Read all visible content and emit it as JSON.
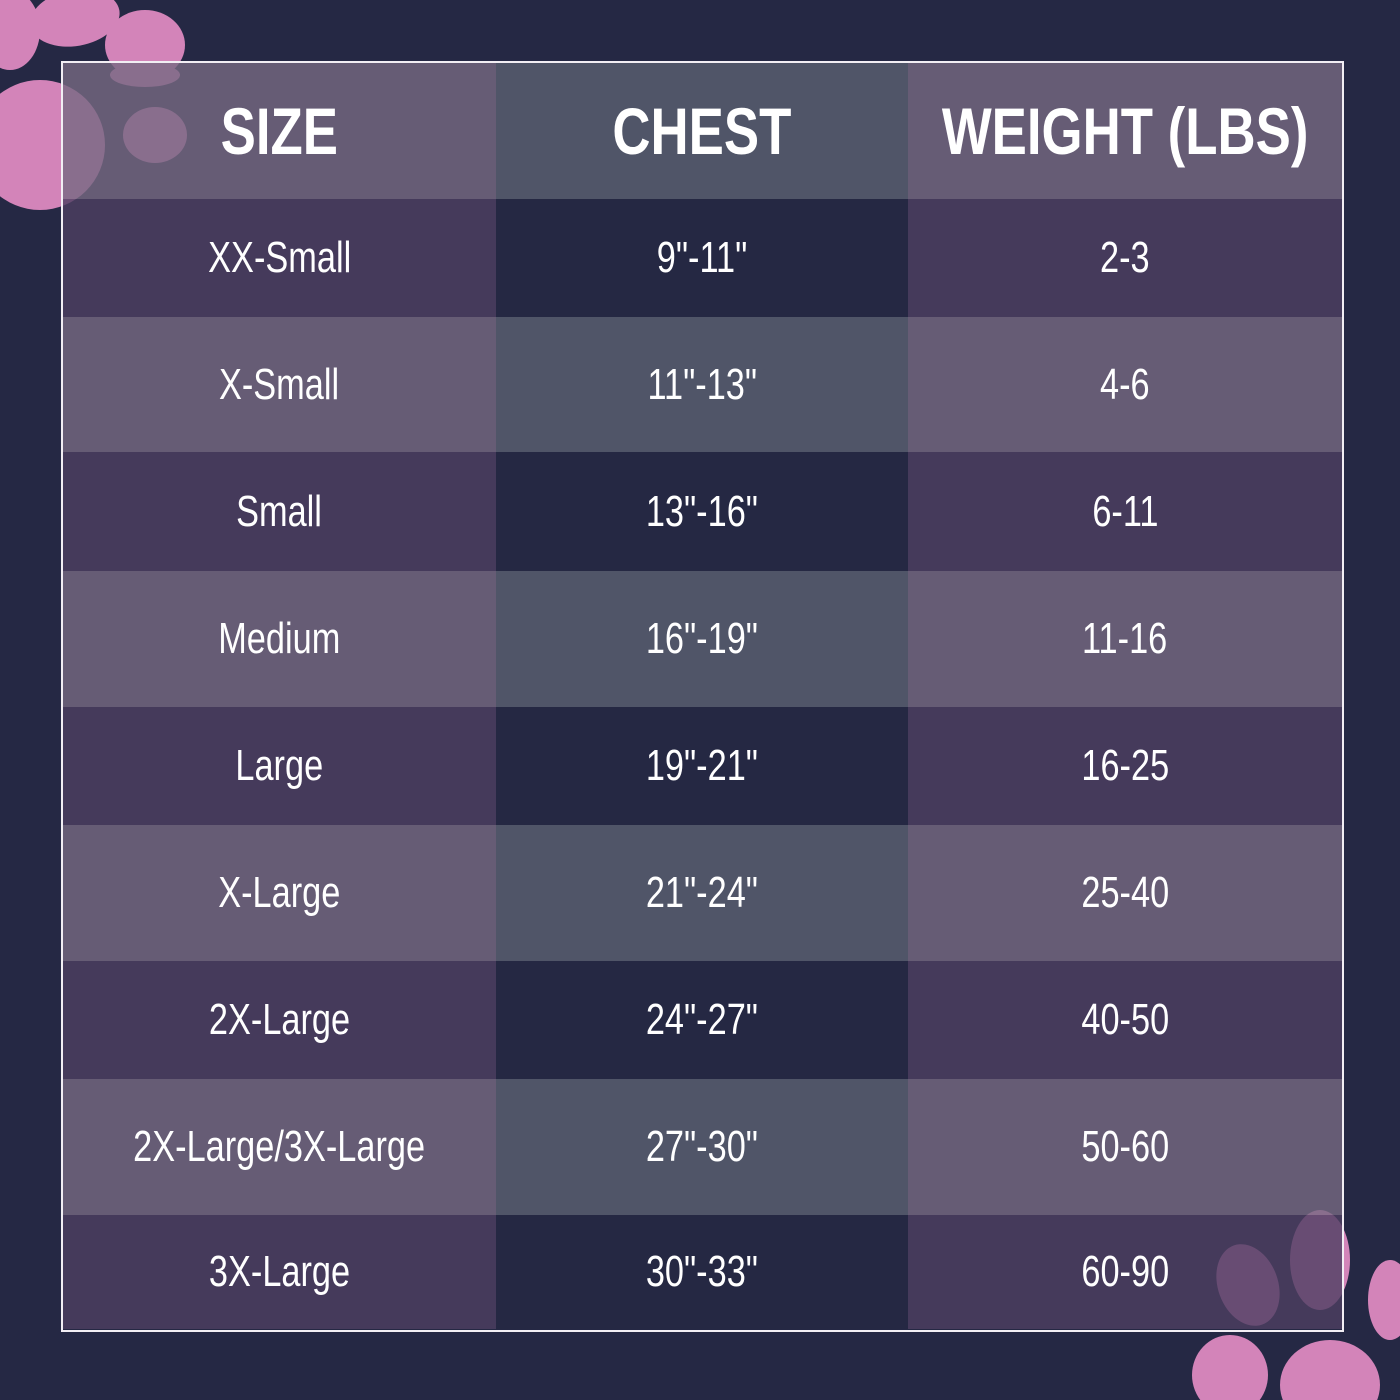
{
  "colors": {
    "background": "#252844",
    "paw": "#d384b9",
    "header_light": "#675c76",
    "header_chest": "#505569",
    "row_dark": "#463a5c",
    "row_dark_chest": "#252844"
  },
  "headers": [
    "SIZE",
    "CHEST",
    "WEIGHT (LBS)"
  ],
  "rows": [
    [
      "XX-Small",
      "9\"-11\"",
      "2-3"
    ],
    [
      "X-Small",
      "11\"-13\"",
      "4-6"
    ],
    [
      "Small",
      "13\"-16\"",
      "6-11"
    ],
    [
      "Medium",
      "16\"-19\"",
      "11-16"
    ],
    [
      "Large",
      "19\"-21\"",
      "16-25"
    ],
    [
      "X-Large",
      "21\"-24\"",
      "25-40"
    ],
    [
      "2X-Large",
      "24\"-27\"",
      "40-50"
    ],
    [
      "2X-Large/3X-Large",
      "27\"-30\"",
      "50-60"
    ],
    [
      "3X-Large",
      "30\"-33\"",
      "60-90"
    ]
  ]
}
